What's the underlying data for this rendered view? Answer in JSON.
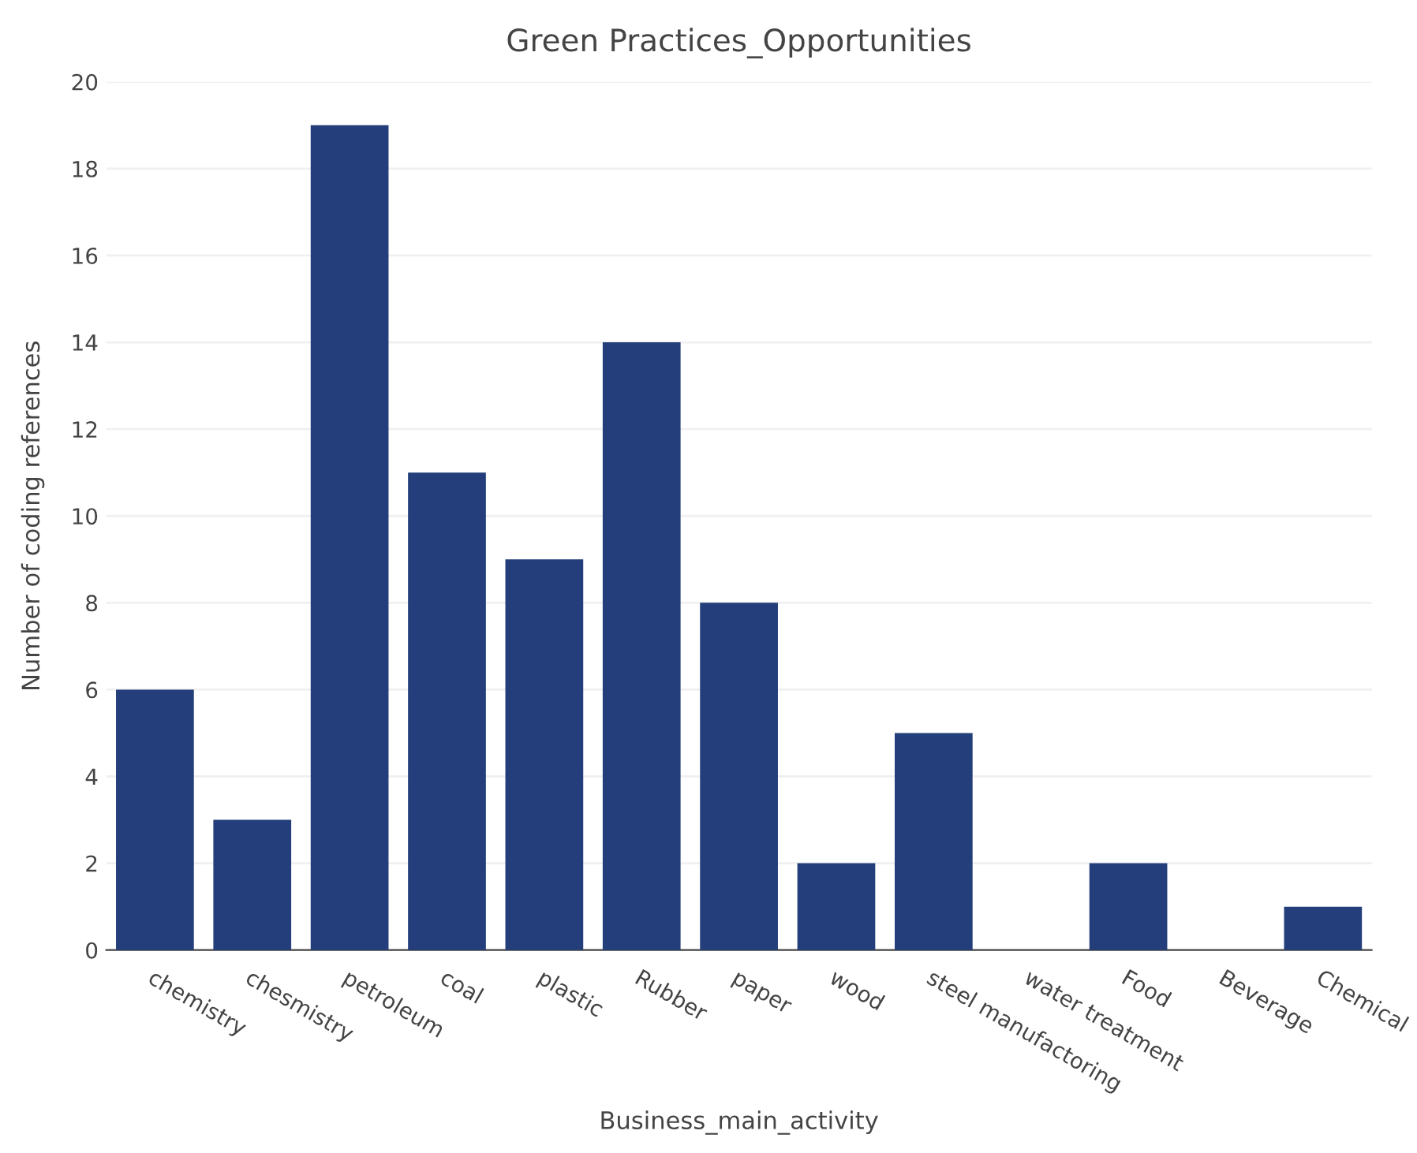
{
  "chart_data": {
    "type": "bar",
    "title": "Green Practices_Opportunities",
    "xlabel": "Business_main_activity",
    "ylabel": "Number of coding references",
    "categories": [
      "chemistry",
      "chesmistry",
      "petroleum",
      "coal",
      "plastic",
      "Rubber",
      "paper",
      "wood",
      "steel manufactoring",
      "water treatment",
      "Food",
      "Beverage",
      "Chemical"
    ],
    "values": [
      6,
      3,
      19,
      11,
      9,
      14,
      8,
      2,
      5,
      0,
      2,
      0,
      1
    ],
    "color": "#233e7a",
    "ylim": [
      0,
      20
    ],
    "yticks": [
      0,
      2,
      4,
      6,
      8,
      10,
      12,
      14,
      16,
      18,
      20
    ],
    "grid": "y"
  }
}
